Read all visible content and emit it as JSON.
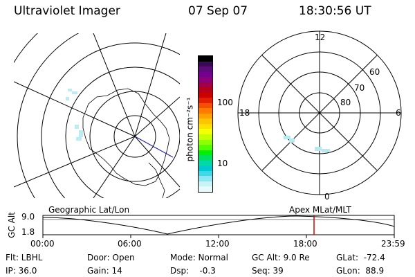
{
  "header": {
    "instrument": "Ultraviolet Imager",
    "date": "07 Sep 07",
    "time": "18:30:56 UT"
  },
  "colorbar": {
    "unit": "photon cm⁻²s⁻¹",
    "ticks": [
      "100",
      "10"
    ],
    "colors": [
      "#000000",
      "#3b0a56",
      "#5a0d78",
      "#75008e",
      "#8c0078",
      "#a0004a",
      "#b4001e",
      "#cc0000",
      "#e12000",
      "#f55000",
      "#ff7a00",
      "#ffa000",
      "#ffc400",
      "#ffe000",
      "#f4ff00",
      "#c8ff00",
      "#8cff00",
      "#50ff00",
      "#00f000",
      "#00e060",
      "#00d8a8",
      "#00c8d0",
      "#40d8e8",
      "#8ae8f2",
      "#c8f4f8",
      "#e8fafc"
    ]
  },
  "right_plot": {
    "mlt_labels": {
      "top": "12",
      "left": "18",
      "right": "6",
      "bottom": "0"
    },
    "lat_labels": [
      "60",
      "70",
      "80"
    ]
  },
  "timeline": {
    "left_label": "Geographic Lat/Lon",
    "right_label": "Apex  MLat/MLT",
    "y_axis_label": "GC Alt",
    "y_ticks": [
      "9.0",
      "1.8"
    ],
    "x_ticks": [
      "00:00",
      "06:00",
      "12:00",
      "18:00",
      "23:59"
    ],
    "marker_color": "#cc0000"
  },
  "info": {
    "filter": "Flt: LBHL",
    "ip": "IP: 36.0",
    "door": "Door: Open",
    "gain": "Gain: 14",
    "mode": "Mode: Normal",
    "dsp": "Dsp:    -0.3",
    "gc_alt": "GC Alt: 9.0 Re",
    "seq": "Seq: 39",
    "glat": "GLat:  -72.4",
    "glon": "GLon:  88.9"
  }
}
